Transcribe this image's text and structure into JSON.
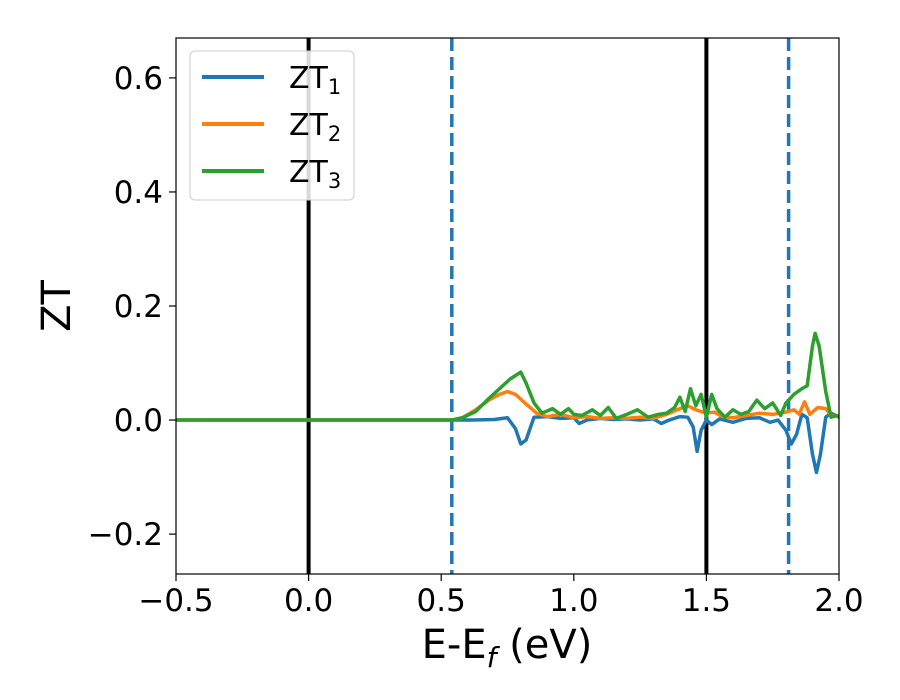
{
  "chart_data": {
    "type": "line",
    "xlabel": "E-E",
    "xlabel_sub": "f",
    "xlabel_unit": " (eV)",
    "ylabel": "ZT",
    "xlim": [
      -0.5,
      2.0
    ],
    "ylim": [
      -0.27,
      0.67
    ],
    "xticks": [
      -0.5,
      0.0,
      0.5,
      1.0,
      1.5,
      2.0
    ],
    "xtick_labels": [
      "−0.5",
      "0.0",
      "0.5",
      "1.0",
      "1.5",
      "2.0"
    ],
    "yticks": [
      -0.2,
      0.0,
      0.2,
      0.4,
      0.6
    ],
    "ytick_labels": [
      "−0.2",
      "0.0",
      "0.2",
      "0.4",
      "0.6"
    ],
    "grid": false,
    "legend_position": "top-left",
    "vlines": [
      {
        "x": 0.0,
        "style": "solid",
        "color": "#000000"
      },
      {
        "x": 1.5,
        "style": "solid",
        "color": "#000000"
      },
      {
        "x": 0.54,
        "style": "dashed",
        "color": "#1f77b4"
      },
      {
        "x": 1.81,
        "style": "dashed",
        "color": "#1f77b4"
      }
    ],
    "series": [
      {
        "name": "ZT",
        "subscript": "1",
        "color": "#1f77b4",
        "points": [
          [
            -0.5,
            0
          ],
          [
            0.5,
            0
          ],
          [
            0.62,
            0
          ],
          [
            0.7,
            0.001
          ],
          [
            0.75,
            0.004
          ],
          [
            0.78,
            -0.015
          ],
          [
            0.8,
            -0.042
          ],
          [
            0.82,
            -0.035
          ],
          [
            0.85,
            0.005
          ],
          [
            0.9,
            0.006
          ],
          [
            0.95,
            0.003
          ],
          [
            1.0,
            0.004
          ],
          [
            1.02,
            -0.006
          ],
          [
            1.05,
            0
          ],
          [
            1.1,
            0.003
          ],
          [
            1.15,
            0.001
          ],
          [
            1.2,
            0.002
          ],
          [
            1.25,
            0
          ],
          [
            1.3,
            0.002
          ],
          [
            1.33,
            -0.006
          ],
          [
            1.36,
            0
          ],
          [
            1.4,
            0.006
          ],
          [
            1.43,
            0.005
          ],
          [
            1.45,
            -0.012
          ],
          [
            1.465,
            -0.055
          ],
          [
            1.48,
            -0.018
          ],
          [
            1.5,
            0
          ],
          [
            1.52,
            -0.008
          ],
          [
            1.55,
            0.002
          ],
          [
            1.6,
            -0.004
          ],
          [
            1.65,
            0.003
          ],
          [
            1.7,
            0.004
          ],
          [
            1.74,
            -0.004
          ],
          [
            1.77,
            0
          ],
          [
            1.8,
            -0.018
          ],
          [
            1.82,
            -0.042
          ],
          [
            1.84,
            -0.025
          ],
          [
            1.86,
            0.01
          ],
          [
            1.88,
            0.004
          ],
          [
            1.9,
            -0.06
          ],
          [
            1.915,
            -0.092
          ],
          [
            1.93,
            -0.06
          ],
          [
            1.95,
            0.005
          ],
          [
            1.97,
            0.012
          ],
          [
            2.0,
            0.005
          ]
        ]
      },
      {
        "name": "ZT",
        "subscript": "2",
        "color": "#ff7f0e",
        "points": [
          [
            -0.5,
            0
          ],
          [
            0.5,
            0
          ],
          [
            0.54,
            0
          ],
          [
            0.58,
            0.004
          ],
          [
            0.63,
            0.018
          ],
          [
            0.68,
            0.035
          ],
          [
            0.72,
            0.045
          ],
          [
            0.75,
            0.05
          ],
          [
            0.78,
            0.045
          ],
          [
            0.82,
            0.028
          ],
          [
            0.86,
            0.012
          ],
          [
            0.9,
            0.006
          ],
          [
            0.95,
            0.01
          ],
          [
            1.0,
            0.004
          ],
          [
            1.05,
            0.006
          ],
          [
            1.1,
            0.003
          ],
          [
            1.15,
            0.004
          ],
          [
            1.2,
            0.003
          ],
          [
            1.25,
            0.005
          ],
          [
            1.3,
            0.003
          ],
          [
            1.35,
            0.01
          ],
          [
            1.4,
            0.02
          ],
          [
            1.43,
            0.025
          ],
          [
            1.46,
            0.018
          ],
          [
            1.5,
            0.012
          ],
          [
            1.53,
            0.014
          ],
          [
            1.56,
            0.006
          ],
          [
            1.6,
            0.004
          ],
          [
            1.65,
            0.008
          ],
          [
            1.7,
            0.012
          ],
          [
            1.75,
            0.01
          ],
          [
            1.8,
            0.014
          ],
          [
            1.83,
            0.018
          ],
          [
            1.85,
            0.01
          ],
          [
            1.87,
            0.032
          ],
          [
            1.89,
            0.01
          ],
          [
            1.92,
            0.022
          ],
          [
            1.95,
            0.02
          ],
          [
            1.97,
            0.008
          ],
          [
            2.0,
            0.006
          ]
        ]
      },
      {
        "name": "ZT",
        "subscript": "3",
        "color": "#2ca02c",
        "points": [
          [
            -0.5,
            0
          ],
          [
            0.5,
            0
          ],
          [
            0.54,
            0
          ],
          [
            0.58,
            0.004
          ],
          [
            0.63,
            0.015
          ],
          [
            0.68,
            0.038
          ],
          [
            0.72,
            0.055
          ],
          [
            0.76,
            0.072
          ],
          [
            0.8,
            0.084
          ],
          [
            0.82,
            0.065
          ],
          [
            0.85,
            0.03
          ],
          [
            0.88,
            0.012
          ],
          [
            0.92,
            0.02
          ],
          [
            0.95,
            0.01
          ],
          [
            0.98,
            0.02
          ],
          [
            1.0,
            0.01
          ],
          [
            1.03,
            0.008
          ],
          [
            1.07,
            0.018
          ],
          [
            1.1,
            0.008
          ],
          [
            1.13,
            0.022
          ],
          [
            1.16,
            0.003
          ],
          [
            1.2,
            0.01
          ],
          [
            1.24,
            0.018
          ],
          [
            1.28,
            0.005
          ],
          [
            1.32,
            0.01
          ],
          [
            1.35,
            0.012
          ],
          [
            1.38,
            0.022
          ],
          [
            1.4,
            0.04
          ],
          [
            1.42,
            0.015
          ],
          [
            1.44,
            0.055
          ],
          [
            1.46,
            0.025
          ],
          [
            1.48,
            0.045
          ],
          [
            1.5,
            0.005
          ],
          [
            1.52,
            0.045
          ],
          [
            1.54,
            0.02
          ],
          [
            1.57,
            0.005
          ],
          [
            1.6,
            0.018
          ],
          [
            1.63,
            0.01
          ],
          [
            1.66,
            0.015
          ],
          [
            1.69,
            0.035
          ],
          [
            1.72,
            0.02
          ],
          [
            1.75,
            0.03
          ],
          [
            1.78,
            0.008
          ],
          [
            1.8,
            0.03
          ],
          [
            1.83,
            0.045
          ],
          [
            1.86,
            0.055
          ],
          [
            1.88,
            0.06
          ],
          [
            1.9,
            0.13
          ],
          [
            1.91,
            0.152
          ],
          [
            1.925,
            0.13
          ],
          [
            1.95,
            0.05
          ],
          [
            1.97,
            0.005
          ],
          [
            1.99,
            0.008
          ],
          [
            2.0,
            0.006
          ]
        ]
      }
    ]
  }
}
